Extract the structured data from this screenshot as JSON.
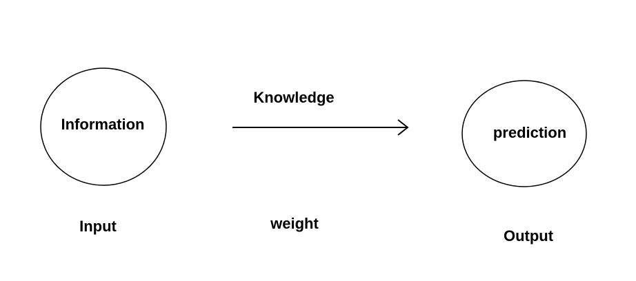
{
  "diagram": {
    "input_node": {
      "text": "Information",
      "caption": "Input"
    },
    "edge": {
      "top_label": "Knowledge",
      "bottom_label": "weight"
    },
    "output_node": {
      "text": "prediction",
      "caption": "Output"
    },
    "colors": {
      "stroke": "#000000",
      "text": "#000000",
      "background": "#ffffff"
    }
  }
}
